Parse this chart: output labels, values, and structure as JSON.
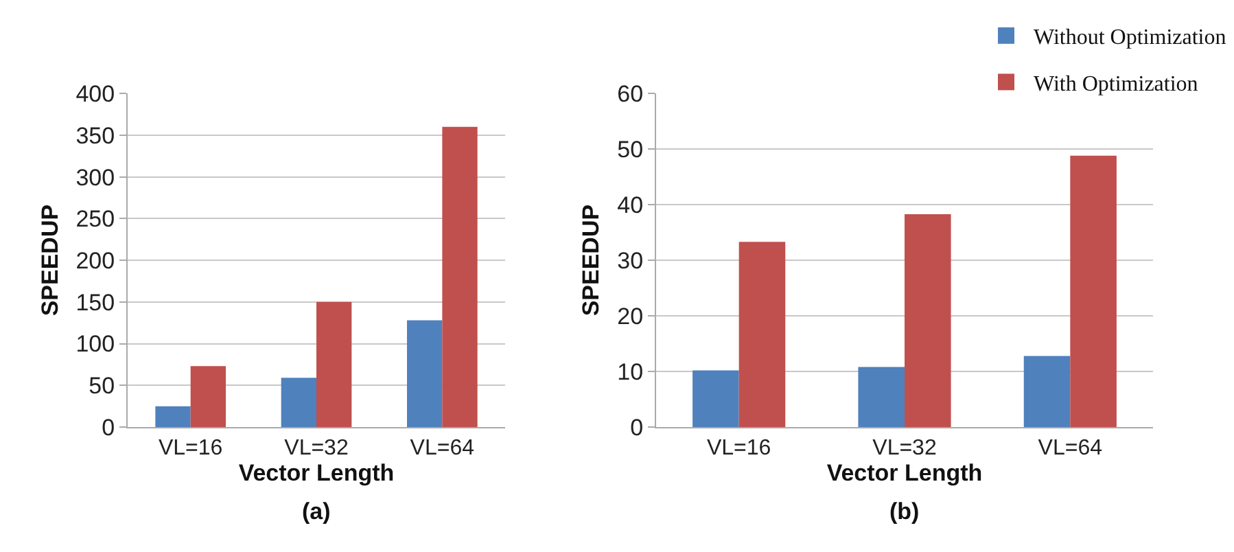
{
  "chart_data": [
    {
      "type": "bar",
      "categories": [
        "VL=16",
        "VL=32",
        "VL=64"
      ],
      "xlabel": "Vector Length",
      "ylabel": "SPEEDUP",
      "annotations": [
        "(a)"
      ],
      "series": [
        {
          "name": "Without Optimization",
          "color": "#4f81bd",
          "values": [
            25,
            59,
            128
          ]
        },
        {
          "name": "With Optimization",
          "color": "#c0504d",
          "values": [
            73,
            150,
            360
          ]
        }
      ],
      "ylim": [
        0,
        400
      ],
      "yticks": [
        0,
        50,
        100,
        150,
        200,
        250,
        300,
        350,
        400
      ],
      "grid": "y",
      "legend": "top right"
    },
    {
      "type": "bar",
      "categories": [
        "VL=16",
        "VL=32",
        "VL=64"
      ],
      "xlabel": "Vector Length",
      "ylabel": "SPEEDUP",
      "annotations": [
        "(b)"
      ],
      "series": [
        {
          "color": "#4f81bd",
          "values": [
            10.2,
            10.8,
            12.8
          ]
        },
        {
          "color": "#c0504d",
          "values": [
            33.3,
            38.3,
            48.8
          ]
        }
      ],
      "ylim": [
        0,
        60
      ],
      "yticks": [
        0,
        10,
        20,
        30,
        40,
        50,
        60
      ],
      "grid": "y"
    }
  ]
}
